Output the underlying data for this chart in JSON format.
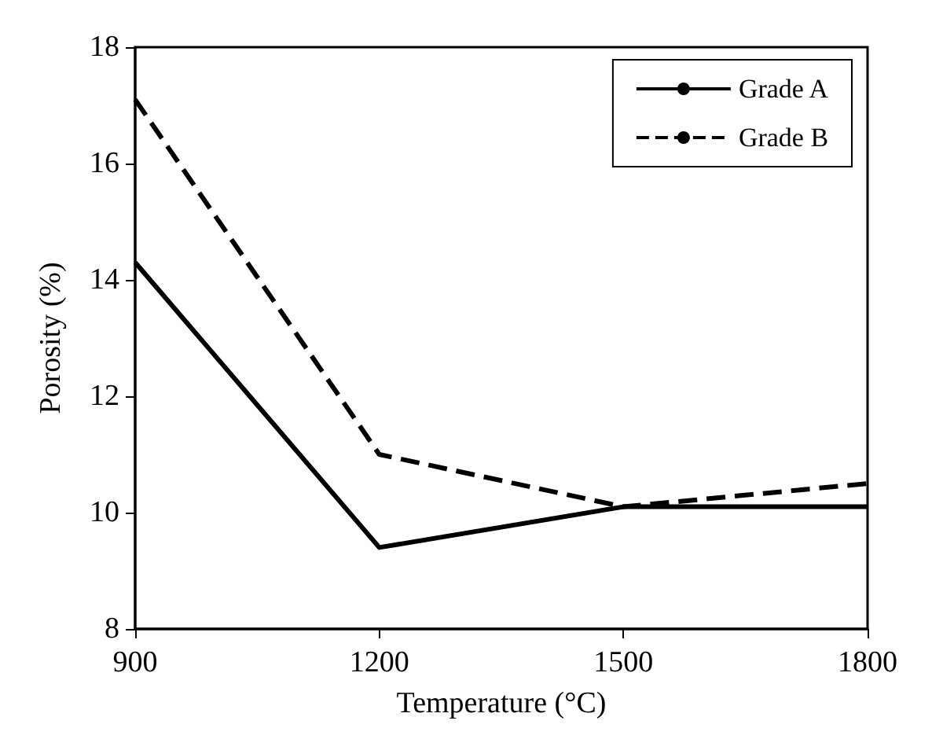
{
  "chart_data": {
    "type": "line",
    "xlabel": "Temperature (°C)",
    "ylabel": "Porosity (%)",
    "x": [
      900,
      1200,
      1500,
      1800
    ],
    "series": [
      {
        "name": "Grade A",
        "color": "#000000",
        "values": [
          14.3,
          9.4,
          10.1,
          10.1
        ],
        "line_style": "solid"
      },
      {
        "name": "Grade B",
        "color": "#000000",
        "values": [
          17.1,
          11.0,
          10.1,
          10.5
        ],
        "line_style": "dashed"
      }
    ],
    "xlim": [
      900,
      1800
    ],
    "xticks": [
      900,
      1200,
      1500,
      1800
    ],
    "ylim": [
      8,
      18
    ],
    "yticks": [
      8,
      10,
      12,
      14,
      16,
      18
    ],
    "grid": false,
    "legend": "top right",
    "marker": "none"
  }
}
